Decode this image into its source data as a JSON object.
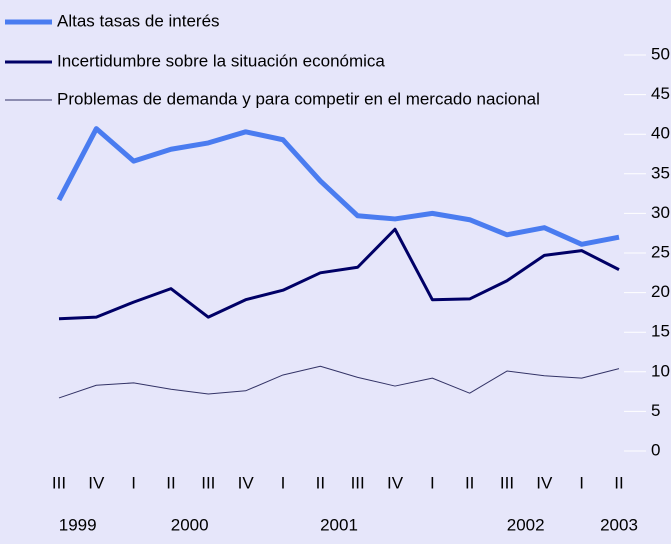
{
  "chart_data": {
    "type": "line",
    "categories": [
      "III",
      "IV",
      "I",
      "II",
      "III",
      "IV",
      "I",
      "II",
      "III",
      "IV",
      "I",
      "II",
      "III",
      "IV",
      "I",
      "II"
    ],
    "year_labels": [
      "1999",
      "2000",
      "2001",
      "2002",
      "2003"
    ],
    "series": [
      {
        "name": "Altas tasas de interés",
        "color": "#4a7cf0",
        "values": [
          31.7,
          40.7,
          36.6,
          38.1,
          38.9,
          40.3,
          39.3,
          34.1,
          29.7,
          29.3,
          30.0,
          29.2,
          27.3,
          28.2,
          26.1,
          27.0
        ]
      },
      {
        "name": "Incertidumbre sobre la situación económica",
        "color": "#000066",
        "values": [
          16.7,
          16.9,
          18.8,
          20.5,
          16.9,
          19.1,
          20.3,
          22.5,
          23.2,
          28.0,
          19.1,
          19.2,
          21.5,
          24.7,
          25.3,
          22.9
        ]
      },
      {
        "name": "Problemas de demanda y para competir en el mercado nacional",
        "color": "#333366",
        "values": [
          6.7,
          8.3,
          8.6,
          7.8,
          7.2,
          7.6,
          9.6,
          10.7,
          9.3,
          8.2,
          9.2,
          7.3,
          10.1,
          9.5,
          9.2,
          10.4
        ]
      }
    ],
    "ylim": [
      0,
      50
    ],
    "yticks": [
      0,
      5,
      10,
      15,
      20,
      25,
      30,
      35,
      40,
      45,
      50
    ],
    "grid": true
  }
}
